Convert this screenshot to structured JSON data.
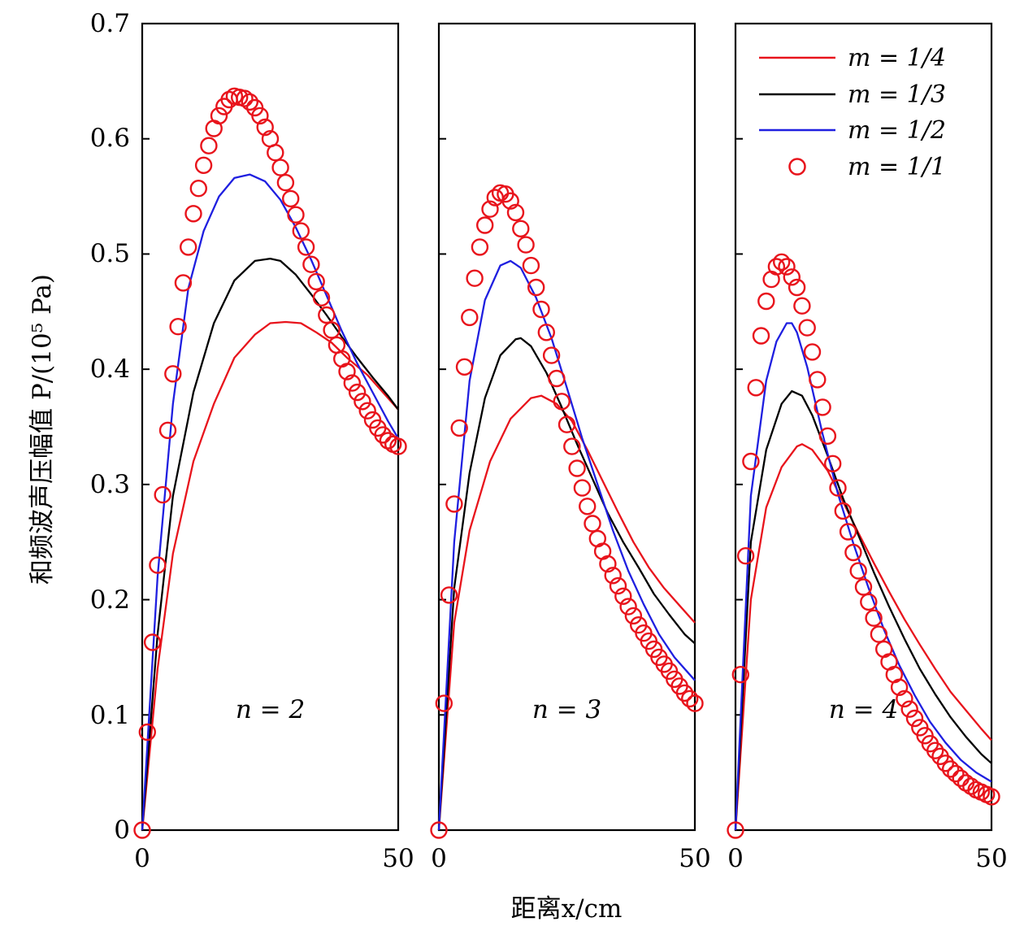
{
  "chart_data": {
    "type": "line",
    "ylabel": "和频波声压幅值 P/(10⁵ Pa)",
    "xlabel": "距离x/cm",
    "ylim": [
      0,
      0.7
    ],
    "xlim": [
      0,
      50
    ],
    "yticks": [
      "0",
      "0.1",
      "0.2",
      "0.3",
      "0.4",
      "0.5",
      "0.6",
      "0.7"
    ],
    "xticks": [
      "0",
      "50"
    ],
    "legend": {
      "position": "top-right",
      "entries": [
        "m = 1/4",
        "m = 1/3",
        "m = 1/2",
        "m = 1/1"
      ]
    },
    "colors": {
      "m_1_4": "#e8141c",
      "m_1_3": "#000000",
      "m_1_2": "#1f1fe0",
      "m_1_1": "#e8141c"
    },
    "panels": [
      {
        "annotation": "n = 2",
        "series": [
          {
            "name": "m = 1/4",
            "style": "line",
            "x": [
              0,
              3,
              6,
              10,
              14,
              18,
              22,
              25,
              28,
              31,
              34,
              37,
              40,
              44,
              47,
              50
            ],
            "y": [
              0,
              0.14,
              0.24,
              0.32,
              0.37,
              0.41,
              0.43,
              0.44,
              0.441,
              0.44,
              0.432,
              0.423,
              0.41,
              0.395,
              0.38,
              0.365
            ]
          },
          {
            "name": "m = 1/3",
            "style": "line",
            "x": [
              0,
              3,
              6,
              10,
              14,
              18,
              22,
              25,
              27,
              30,
              33,
              36,
              39,
              42,
              45,
              48,
              50
            ],
            "y": [
              0,
              0.17,
              0.29,
              0.38,
              0.44,
              0.477,
              0.494,
              0.496,
              0.494,
              0.482,
              0.465,
              0.447,
              0.428,
              0.41,
              0.393,
              0.377,
              0.365
            ]
          },
          {
            "name": "m = 1/2",
            "style": "line",
            "x": [
              0,
              3,
              6,
              9,
              12,
              15,
              18,
              21,
              24,
              27,
              30,
              33,
              36,
              39,
              42,
              45,
              48,
              50
            ],
            "y": [
              0,
              0.22,
              0.37,
              0.47,
              0.52,
              0.55,
              0.566,
              0.569,
              0.563,
              0.547,
              0.523,
              0.495,
              0.464,
              0.433,
              0.405,
              0.38,
              0.355,
              0.34
            ]
          },
          {
            "name": "m = 1/1",
            "style": "marker",
            "x": [
              0,
              1,
              2,
              3,
              4,
              5,
              6,
              7,
              8,
              9,
              10,
              11,
              12,
              13,
              14,
              15,
              16,
              17,
              18,
              19,
              20,
              21,
              22,
              23,
              24,
              25,
              26,
              27,
              28,
              29,
              30,
              31,
              32,
              33,
              34,
              35,
              36,
              37,
              38,
              39,
              40,
              41,
              42,
              43,
              44,
              45,
              46,
              47,
              48,
              49,
              50
            ],
            "y": [
              0,
              0.085,
              0.163,
              0.23,
              0.291,
              0.347,
              0.396,
              0.437,
              0.475,
              0.506,
              0.535,
              0.557,
              0.577,
              0.594,
              0.609,
              0.62,
              0.628,
              0.634,
              0.637,
              0.636,
              0.635,
              0.632,
              0.627,
              0.62,
              0.61,
              0.6,
              0.588,
              0.575,
              0.562,
              0.548,
              0.534,
              0.52,
              0.506,
              0.491,
              0.476,
              0.462,
              0.447,
              0.434,
              0.421,
              0.409,
              0.398,
              0.388,
              0.38,
              0.372,
              0.364,
              0.356,
              0.349,
              0.343,
              0.338,
              0.335,
              0.333
            ]
          }
        ]
      },
      {
        "annotation": "n = 3",
        "series": [
          {
            "name": "m = 1/4",
            "style": "line",
            "x": [
              0,
              3,
              6,
              10,
              14,
              18,
              20,
              23,
              26,
              29,
              32,
              35,
              38,
              41,
              44,
              47,
              50
            ],
            "y": [
              0,
              0.18,
              0.26,
              0.32,
              0.357,
              0.375,
              0.377,
              0.37,
              0.355,
              0.33,
              0.303,
              0.276,
              0.25,
              0.228,
              0.21,
              0.195,
              0.18
            ]
          },
          {
            "name": "m = 1/3",
            "style": "line",
            "x": [
              0,
              3,
              6,
              9,
              12,
              15,
              16,
              18,
              21,
              24,
              27,
              30,
              33,
              36,
              39,
              42,
              45,
              48,
              50
            ],
            "y": [
              0,
              0.21,
              0.31,
              0.375,
              0.412,
              0.426,
              0.427,
              0.42,
              0.397,
              0.367,
              0.335,
              0.305,
              0.275,
              0.25,
              0.228,
              0.205,
              0.187,
              0.17,
              0.162
            ]
          },
          {
            "name": "m = 1/2",
            "style": "line",
            "x": [
              0,
              3,
              6,
              9,
              12,
              14,
              16,
              19,
              22,
              25,
              28,
              31,
              34,
              37,
              40,
              43,
              46,
              49,
              50
            ],
            "y": [
              0,
              0.25,
              0.39,
              0.46,
              0.49,
              0.494,
              0.488,
              0.462,
              0.427,
              0.384,
              0.34,
              0.3,
              0.26,
              0.225,
              0.196,
              0.17,
              0.15,
              0.135,
              0.13
            ]
          },
          {
            "name": "m = 1/1",
            "style": "marker",
            "x": [
              0,
              1,
              2,
              3,
              4,
              5,
              6,
              7,
              8,
              9,
              10,
              11,
              12,
              13,
              14,
              15,
              16,
              17,
              18,
              19,
              20,
              21,
              22,
              23,
              24,
              25,
              26,
              27,
              28,
              29,
              30,
              31,
              32,
              33,
              34,
              35,
              36,
              37,
              38,
              39,
              40,
              41,
              42,
              43,
              44,
              45,
              46,
              47,
              48,
              49,
              50
            ],
            "y": [
              0,
              0.11,
              0.204,
              0.283,
              0.349,
              0.402,
              0.445,
              0.479,
              0.506,
              0.525,
              0.539,
              0.549,
              0.553,
              0.552,
              0.546,
              0.536,
              0.522,
              0.508,
              0.49,
              0.471,
              0.452,
              0.432,
              0.412,
              0.392,
              0.372,
              0.352,
              0.333,
              0.314,
              0.297,
              0.281,
              0.266,
              0.253,
              0.242,
              0.231,
              0.221,
              0.212,
              0.203,
              0.194,
              0.186,
              0.178,
              0.171,
              0.164,
              0.157,
              0.15,
              0.144,
              0.138,
              0.131,
              0.125,
              0.119,
              0.114,
              0.11
            ]
          }
        ]
      },
      {
        "annotation": "n = 4",
        "series": [
          {
            "name": "m = 1/4",
            "style": "line",
            "x": [
              0,
              3,
              6,
              9,
              12,
              13,
              15,
              18,
              21,
              24,
              27,
              30,
              33,
              36,
              39,
              42,
              45,
              48,
              50
            ],
            "y": [
              0,
              0.2,
              0.28,
              0.315,
              0.333,
              0.335,
              0.33,
              0.312,
              0.285,
              0.258,
              0.232,
              0.207,
              0.183,
              0.161,
              0.14,
              0.12,
              0.104,
              0.088,
              0.078
            ]
          },
          {
            "name": "m = 1/3",
            "style": "line",
            "x": [
              0,
              3,
              6,
              9,
              11,
              13,
              15,
              18,
              21,
              24,
              27,
              30,
              33,
              36,
              39,
              42,
              45,
              48,
              50
            ],
            "y": [
              0,
              0.25,
              0.33,
              0.37,
              0.381,
              0.377,
              0.36,
              0.325,
              0.288,
              0.256,
              0.224,
              0.194,
              0.166,
              0.14,
              0.118,
              0.098,
              0.081,
              0.066,
              0.058
            ]
          },
          {
            "name": "m = 1/2",
            "style": "line",
            "x": [
              0,
              3,
              6,
              8,
              10,
              11,
              12,
              14,
              17,
              20,
              23,
              26,
              29,
              32,
              35,
              38,
              41,
              44,
              47,
              50
            ],
            "y": [
              0,
              0.29,
              0.39,
              0.424,
              0.44,
              0.44,
              0.432,
              0.402,
              0.344,
              0.292,
              0.249,
              0.21,
              0.174,
              0.143,
              0.117,
              0.094,
              0.076,
              0.061,
              0.05,
              0.042
            ]
          },
          {
            "name": "m = 1/1",
            "style": "marker",
            "x": [
              0,
              1,
              2,
              3,
              4,
              5,
              6,
              7,
              8,
              9,
              10,
              11,
              12,
              13,
              14,
              15,
              16,
              17,
              18,
              19,
              20,
              21,
              22,
              23,
              24,
              25,
              26,
              27,
              28,
              29,
              30,
              31,
              32,
              33,
              34,
              35,
              36,
              37,
              38,
              39,
              40,
              41,
              42,
              43,
              44,
              45,
              46,
              47,
              48,
              49,
              50
            ],
            "y": [
              0,
              0.135,
              0.238,
              0.32,
              0.384,
              0.429,
              0.459,
              0.478,
              0.489,
              0.493,
              0.489,
              0.48,
              0.471,
              0.455,
              0.436,
              0.415,
              0.391,
              0.367,
              0.342,
              0.318,
              0.297,
              0.277,
              0.259,
              0.241,
              0.225,
              0.211,
              0.198,
              0.184,
              0.17,
              0.157,
              0.146,
              0.135,
              0.124,
              0.114,
              0.105,
              0.097,
              0.089,
              0.082,
              0.075,
              0.069,
              0.064,
              0.058,
              0.053,
              0.049,
              0.045,
              0.041,
              0.038,
              0.035,
              0.033,
              0.031,
              0.029
            ]
          }
        ]
      }
    ]
  }
}
